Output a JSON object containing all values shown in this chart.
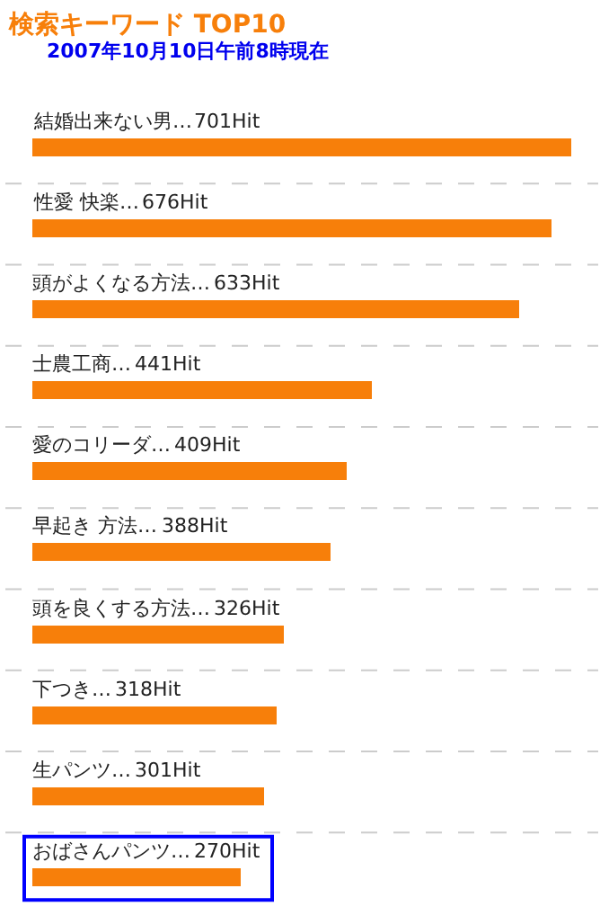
{
  "chart_data": {
    "type": "bar",
    "orientation": "horizontal",
    "title": "検索キーワード TOP10",
    "subtitle": "2007年10月10日午前8時現在",
    "categories": [
      "結婚出来ない男…",
      "性愛 快楽…",
      "頭がよくなる方法…",
      "士農工商…",
      "愛のコリーダ…",
      "早起き 方法…",
      "頭を良くする方法…",
      "下つき…",
      "生パンツ…",
      "おばさんパンツ…"
    ],
    "values": [
      701,
      676,
      633,
      441,
      409,
      388,
      326,
      318,
      301,
      270
    ],
    "value_labels": [
      "701Hit",
      "676Hit",
      "633Hit",
      "441Hit",
      "409Hit",
      "388Hit",
      "326Hit",
      "318Hit",
      "301Hit",
      "270Hit"
    ],
    "color": "#f77f0a",
    "grid": "y"
  }
}
